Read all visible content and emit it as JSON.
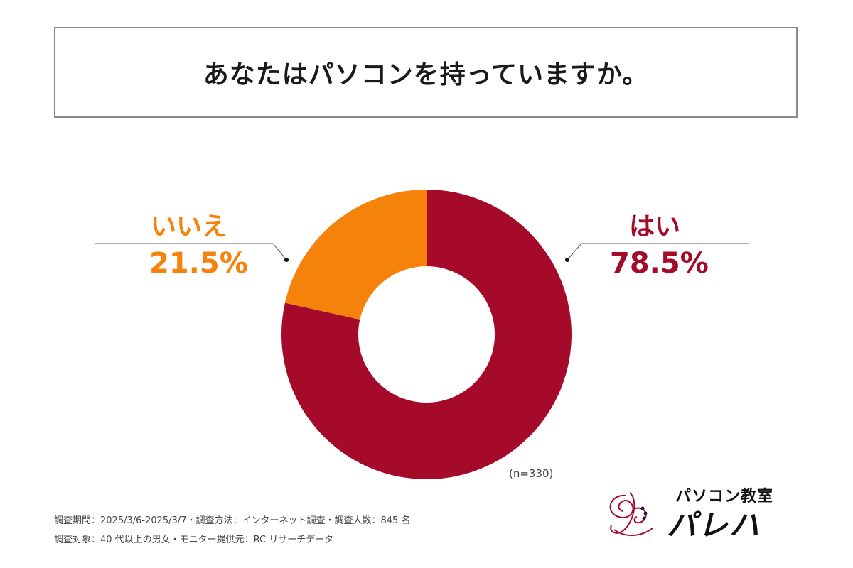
{
  "title": "あなたはパソコンを持っていますか。",
  "chart_data": {
    "type": "pie",
    "donut": true,
    "categories": [
      "はい",
      "いいえ"
    ],
    "values": [
      78.5,
      21.5
    ],
    "value_labels": [
      "78.5%",
      "21.5%"
    ],
    "colors": [
      "#a50a2b",
      "#f5820b"
    ],
    "start": "12 o'clock, clockwise",
    "annotation": "(n=330)"
  },
  "footnotes": {
    "line1": "調査期間：2025/3/6-2025/3/7・調査方法：インターネット調査・調査人数：845 名",
    "line2": "調査対象：40 代以上の男女・モニター提供元：RC リサーチデータ"
  },
  "logo": {
    "tagline": "パソコン教室",
    "name": "パレハ"
  }
}
